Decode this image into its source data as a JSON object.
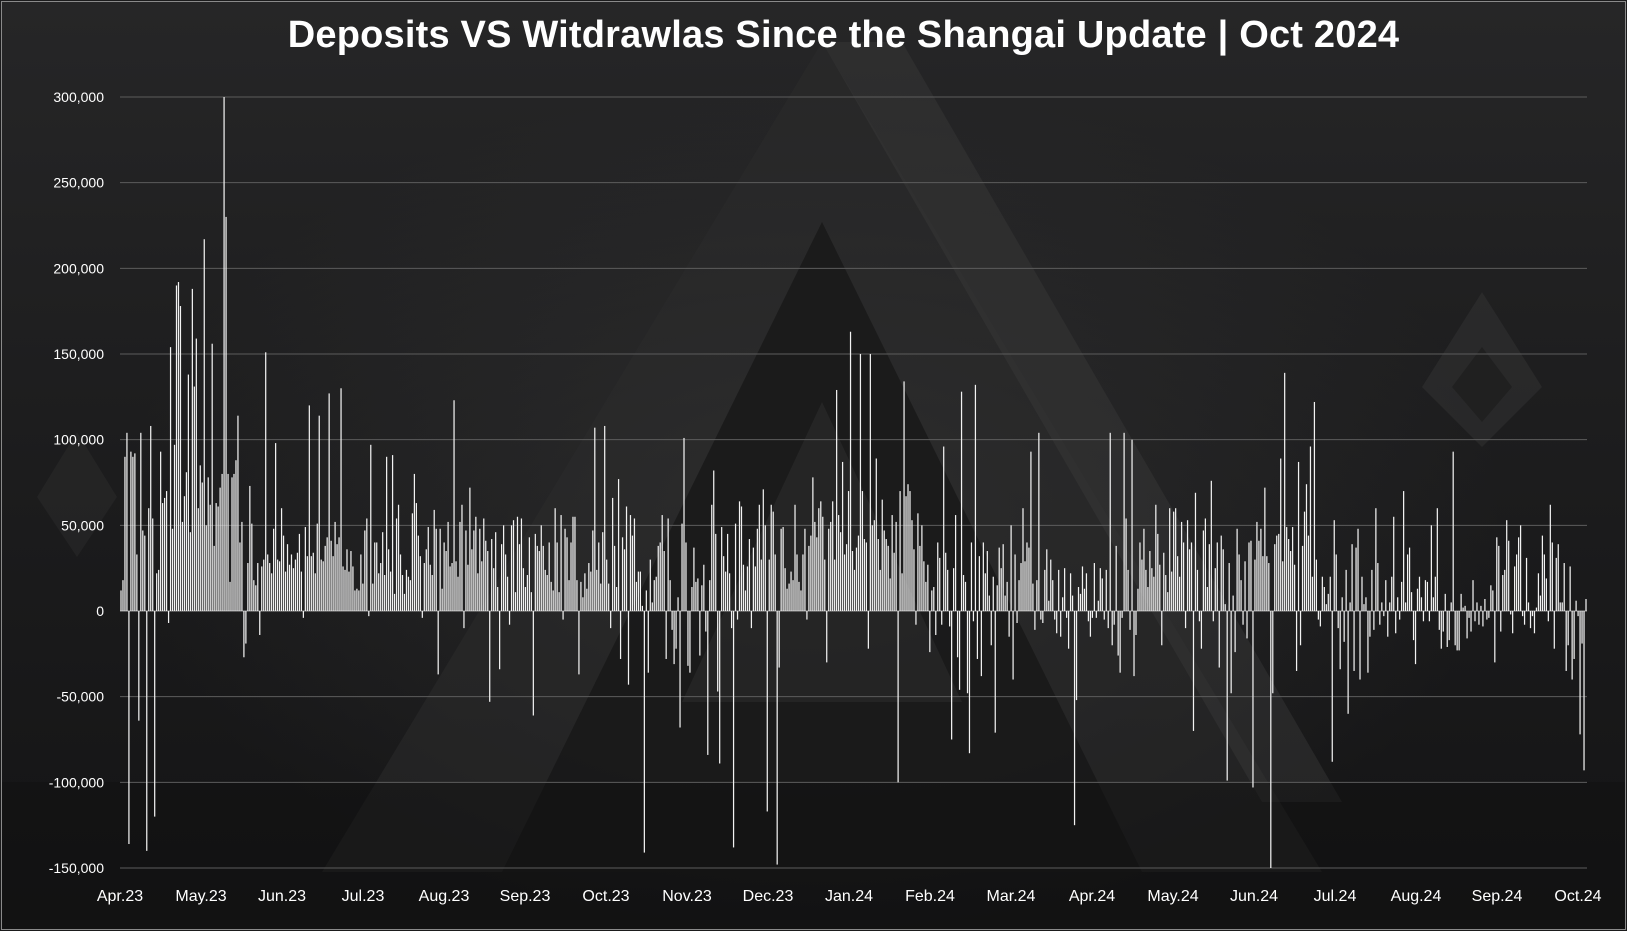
{
  "chart_data": {
    "type": "bar",
    "title": "Deposits VS Witdrawlas Since the Shangai Update | Oct 2024",
    "xlabel": "",
    "ylabel": "",
    "ylim": [
      -150000,
      300000
    ],
    "y_ticks": [
      "300,000",
      "250,000",
      "200,000",
      "150,000",
      "100,000",
      "50,000",
      "0",
      "-50,000",
      "-100,000",
      "-150,000"
    ],
    "x_tick_labels": [
      "Apr.23",
      "May.23",
      "Jun.23",
      "Jul.23",
      "Aug.23",
      "Sep.23",
      "Oct.23",
      "Nov.23",
      "Dec.23",
      "Jan.24",
      "Feb.24",
      "Mar.24",
      "Apr.24",
      "May.24",
      "Jun.24",
      "Jul.24",
      "Aug.24",
      "Sep.24",
      "Oct.24"
    ],
    "grid": true,
    "legend": "none",
    "bar_color": "#f2f2f2",
    "series": [
      {
        "values": [
          12000,
          18000,
          90000,
          104000,
          -136000,
          93000,
          90000,
          92000,
          33000,
          -64000,
          104000,
          47000,
          44000,
          -140000,
          60000,
          108000,
          54000,
          -120000,
          22000,
          24000,
          93000,
          63000,
          66000,
          70000,
          -7000,
          154000,
          48000,
          97000,
          190000,
          192000,
          178000,
          52000,
          67000,
          81000,
          138000,
          46000,
          188000,
          131000,
          159000,
          60000,
          85000,
          75000,
          217000,
          50000,
          78000,
          62000,
          156000,
          38000,
          63000,
          61000,
          72000,
          80000,
          300000,
          230000,
          80000,
          17000,
          78000,
          80000,
          88000,
          114000,
          40000,
          52000,
          -27000,
          -19000,
          28000,
          73000,
          51000,
          18000,
          15000,
          28000,
          -14000,
          26000,
          30000,
          151000,
          33000,
          28000,
          22000,
          48000,
          98000,
          30000,
          29000,
          60000,
          44000,
          23000,
          39000,
          27000,
          33000,
          25000,
          30000,
          34000,
          45000,
          23000,
          -4000,
          49000,
          32000,
          120000,
          32000,
          34000,
          22000,
          51000,
          114000,
          30000,
          29000,
          38000,
          43000,
          127000,
          41000,
          32000,
          52000,
          39000,
          43000,
          130000,
          26000,
          24000,
          36000,
          23000,
          35000,
          26000,
          12000,
          13000,
          12000,
          33000,
          16000,
          47000,
          54000,
          -3000,
          97000,
          16000,
          40000,
          40000,
          22000,
          28000,
          46000,
          21000,
          90000,
          36000,
          23000,
          91000,
          10000,
          54000,
          62000,
          33000,
          21000,
          10000,
          24000,
          20000,
          18000,
          57000,
          80000,
          63000,
          44000,
          32000,
          -4000,
          28000,
          36000,
          49000,
          27000,
          21000,
          59000,
          48000,
          -37000,
          48000,
          13000,
          40000,
          35000,
          52000,
          26000,
          28000,
          123000,
          29000,
          20000,
          52000,
          62000,
          -10000,
          47000,
          27000,
          72000,
          36000,
          47000,
          55000,
          22000,
          48000,
          29000,
          54000,
          41000,
          35000,
          -53000,
          42000,
          25000,
          46000,
          14000,
          -34000,
          39000,
          50000,
          33000,
          20000,
          -8000,
          50000,
          53000,
          11000,
          55000,
          39000,
          54000,
          25000,
          14000,
          21000,
          43000,
          11000,
          -61000,
          45000,
          38000,
          35000,
          50000,
          38000,
          24000,
          21000,
          40000,
          17000,
          12000,
          60000,
          40000,
          11000,
          56000,
          -5000,
          48000,
          43000,
          18000,
          40000,
          55000,
          55000,
          18000,
          -37000,
          17000,
          8000,
          22000,
          13000,
          28000,
          23000,
          47000,
          107000,
          24000,
          40000,
          16000,
          46000,
          108000,
          30000,
          16000,
          -10000,
          66000,
          38000,
          14000,
          77000,
          -28000,
          43000,
          36000,
          61000,
          -43000,
          56000,
          44000,
          54000,
          17000,
          23000,
          23000,
          3000,
          -141000,
          12000,
          -36000,
          30000,
          5000,
          18000,
          20000,
          38000,
          40000,
          56000,
          35000,
          -28000,
          54000,
          18000,
          -11000,
          -31000,
          -22000,
          8000,
          -68000,
          51000,
          101000,
          40000,
          -32000,
          -36000,
          14000,
          37000,
          17000,
          19000,
          -26000,
          15000,
          27000,
          -12000,
          -84000,
          18000,
          62000,
          82000,
          45000,
          -47000,
          -89000,
          49000,
          32000,
          23000,
          45000,
          22000,
          -10000,
          -138000,
          51000,
          -5000,
          64000,
          61000,
          27000,
          12000,
          26000,
          42000,
          -10000,
          37000,
          26000,
          48000,
          62000,
          30000,
          71000,
          50000,
          -117000,
          30000,
          62000,
          58000,
          33000,
          -148000,
          -33000,
          48000,
          49000,
          25000,
          13000,
          16000,
          23000,
          18000,
          62000,
          33000,
          17000,
          12000,
          33000,
          48000,
          -5000,
          38000,
          44000,
          78000,
          52000,
          43000,
          60000,
          64000,
          55000,
          30000,
          -30000,
          48000,
          52000,
          64000,
          30000,
          129000,
          56000,
          46000,
          87000,
          33000,
          39000,
          70000,
          163000,
          35000,
          24000,
          37000,
          44000,
          150000,
          70000,
          42000,
          40000,
          -22000,
          150000,
          50000,
          53000,
          89000,
          42000,
          24000,
          65000,
          47000,
          42000,
          38000,
          19000,
          56000,
          34000,
          52000,
          -100000,
          70000,
          22000,
          134000,
          67000,
          74000,
          70000,
          53000,
          36000,
          -8000,
          57000,
          38000,
          50000,
          29000,
          17000,
          27000,
          -24000,
          12000,
          14000,
          -14000,
          40000,
          31000,
          -8000,
          96000,
          34000,
          24000,
          -9000,
          -75000,
          25000,
          56000,
          -27000,
          -46000,
          128000,
          21000,
          17000,
          -48000,
          -83000,
          40000,
          -6000,
          132000,
          -28000,
          32000,
          -38000,
          40000,
          22000,
          35000,
          9000,
          -20000,
          20000,
          -71000,
          15000,
          37000,
          25000,
          39000,
          9000,
          17000,
          -15000,
          50000,
          -40000,
          33000,
          -7000,
          18000,
          28000,
          60000,
          29000,
          40000,
          37000,
          93000,
          16000,
          -11000,
          18000,
          104000,
          -5000,
          -7000,
          24000,
          36000,
          6000,
          30000,
          18000,
          -5000,
          -13000,
          24000,
          -15000,
          8000,
          25000,
          -4000,
          -22000,
          22000,
          9000,
          -125000,
          -52000,
          14000,
          10000,
          26000,
          13000,
          22000,
          -6000,
          -15000,
          -4000,
          28000,
          -4000,
          6000,
          25000,
          19000,
          -5000,
          24000,
          -10000,
          104000,
          -20000,
          -8000,
          38000,
          -26000,
          -36000,
          -4000,
          104000,
          54000,
          24000,
          -11000,
          100000,
          -38000,
          -14000,
          13000,
          40000,
          30000,
          48000,
          24000,
          14000,
          35000,
          25000,
          20000,
          62000,
          45000,
          27000,
          -20000,
          34000,
          21000,
          11000,
          60000,
          23000,
          58000,
          60000,
          32000,
          20000,
          52000,
          40000,
          -10000,
          53000,
          36000,
          40000,
          -70000,
          69000,
          24000,
          -6000,
          -22000,
          47000,
          54000,
          14000,
          39000,
          76000,
          -6000,
          25000,
          40000,
          -33000,
          44000,
          36000,
          4000,
          -99000,
          28000,
          -48000,
          9000,
          -24000,
          48000,
          33000,
          18000,
          -8000,
          29000,
          -16000,
          40000,
          41000,
          -103000,
          30000,
          52000,
          41000,
          48000,
          32000,
          72000,
          32000,
          28000,
          -150000,
          -48000,
          39000,
          44000,
          45000,
          89000,
          29000,
          139000,
          49000,
          42000,
          35000,
          49000,
          27000,
          -35000,
          87000,
          -20000,
          38000,
          58000,
          74000,
          44000,
          96000,
          20000,
          122000,
          30000,
          -5000,
          -9000,
          20000,
          14000,
          4000,
          10000,
          20000,
          -88000,
          53000,
          33000,
          -10000,
          -34000,
          8000,
          -18000,
          24000,
          -60000,
          5000,
          39000,
          -35000,
          37000,
          48000,
          -40000,
          20000,
          4000,
          8000,
          -36000,
          -15000,
          24000,
          -11000,
          60000,
          28000,
          -8000,
          5000,
          -3000,
          18000,
          -15000,
          5000,
          20000,
          55000,
          -13000,
          8000,
          -5000,
          17000,
          70000,
          5000,
          33000,
          37000,
          11000,
          -17000,
          -31000,
          13000,
          20000,
          8000,
          -6000,
          18000,
          17000,
          -6000,
          50000,
          8000,
          20000,
          60000,
          -11000,
          -22000,
          -12000,
          10000,
          -21000,
          -17000,
          5000,
          93000,
          -20000,
          -23000,
          -23000,
          10000,
          2000,
          3000,
          -16000,
          -4000,
          -12000,
          18000,
          -6000,
          5000,
          -8000,
          3000,
          -9000,
          7000,
          -5000,
          -4000,
          15000,
          12000,
          -30000,
          43000,
          38000,
          -12000,
          21000,
          24000,
          53000,
          41000,
          -2000,
          -13000,
          26000,
          33000,
          43000,
          50000,
          -3000,
          -8000,
          31000,
          5000,
          -10000,
          -3000,
          -13000,
          2000,
          22000,
          9000,
          44000,
          33000,
          19000,
          -6000,
          62000,
          40000,
          -22000,
          31000,
          39000,
          5000,
          5000,
          28000,
          -35000,
          -20000,
          26000,
          -40000,
          -28000,
          6000,
          -3000,
          -72000,
          -19000,
          -93000,
          7000
        ]
      }
    ]
  }
}
